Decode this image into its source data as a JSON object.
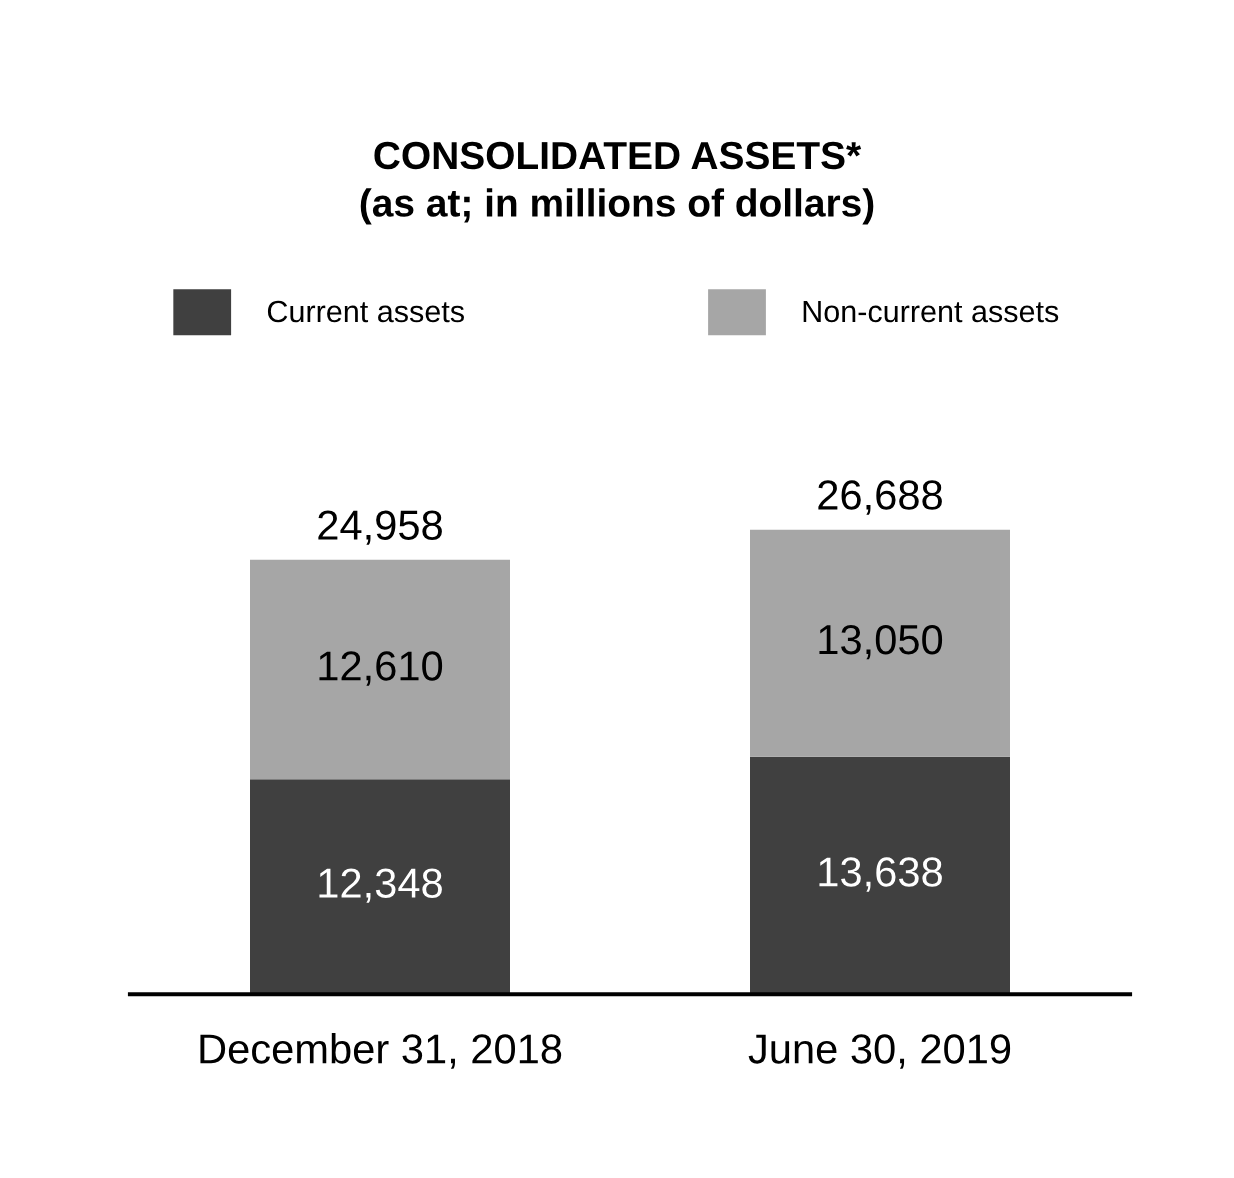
{
  "chart_data": {
    "type": "bar",
    "title": "CONSOLIDATED ASSETS*\n(as at; in millions of dollars)",
    "categories": [
      "December 31, 2018",
      "June 30, 2019"
    ],
    "stacked": true,
    "legend": "top",
    "series": [
      {
        "name": "Current assets",
        "color": "#404040",
        "values": [
          12348,
          13638
        ],
        "value_labels": [
          "12,348",
          "13,638"
        ]
      },
      {
        "name": "Non-current assets",
        "color": "#a6a6a6",
        "values": [
          12610,
          13050
        ],
        "value_labels": [
          "12,610",
          "13,050"
        ]
      }
    ],
    "totals": [
      "24,958",
      "26,688"
    ]
  }
}
